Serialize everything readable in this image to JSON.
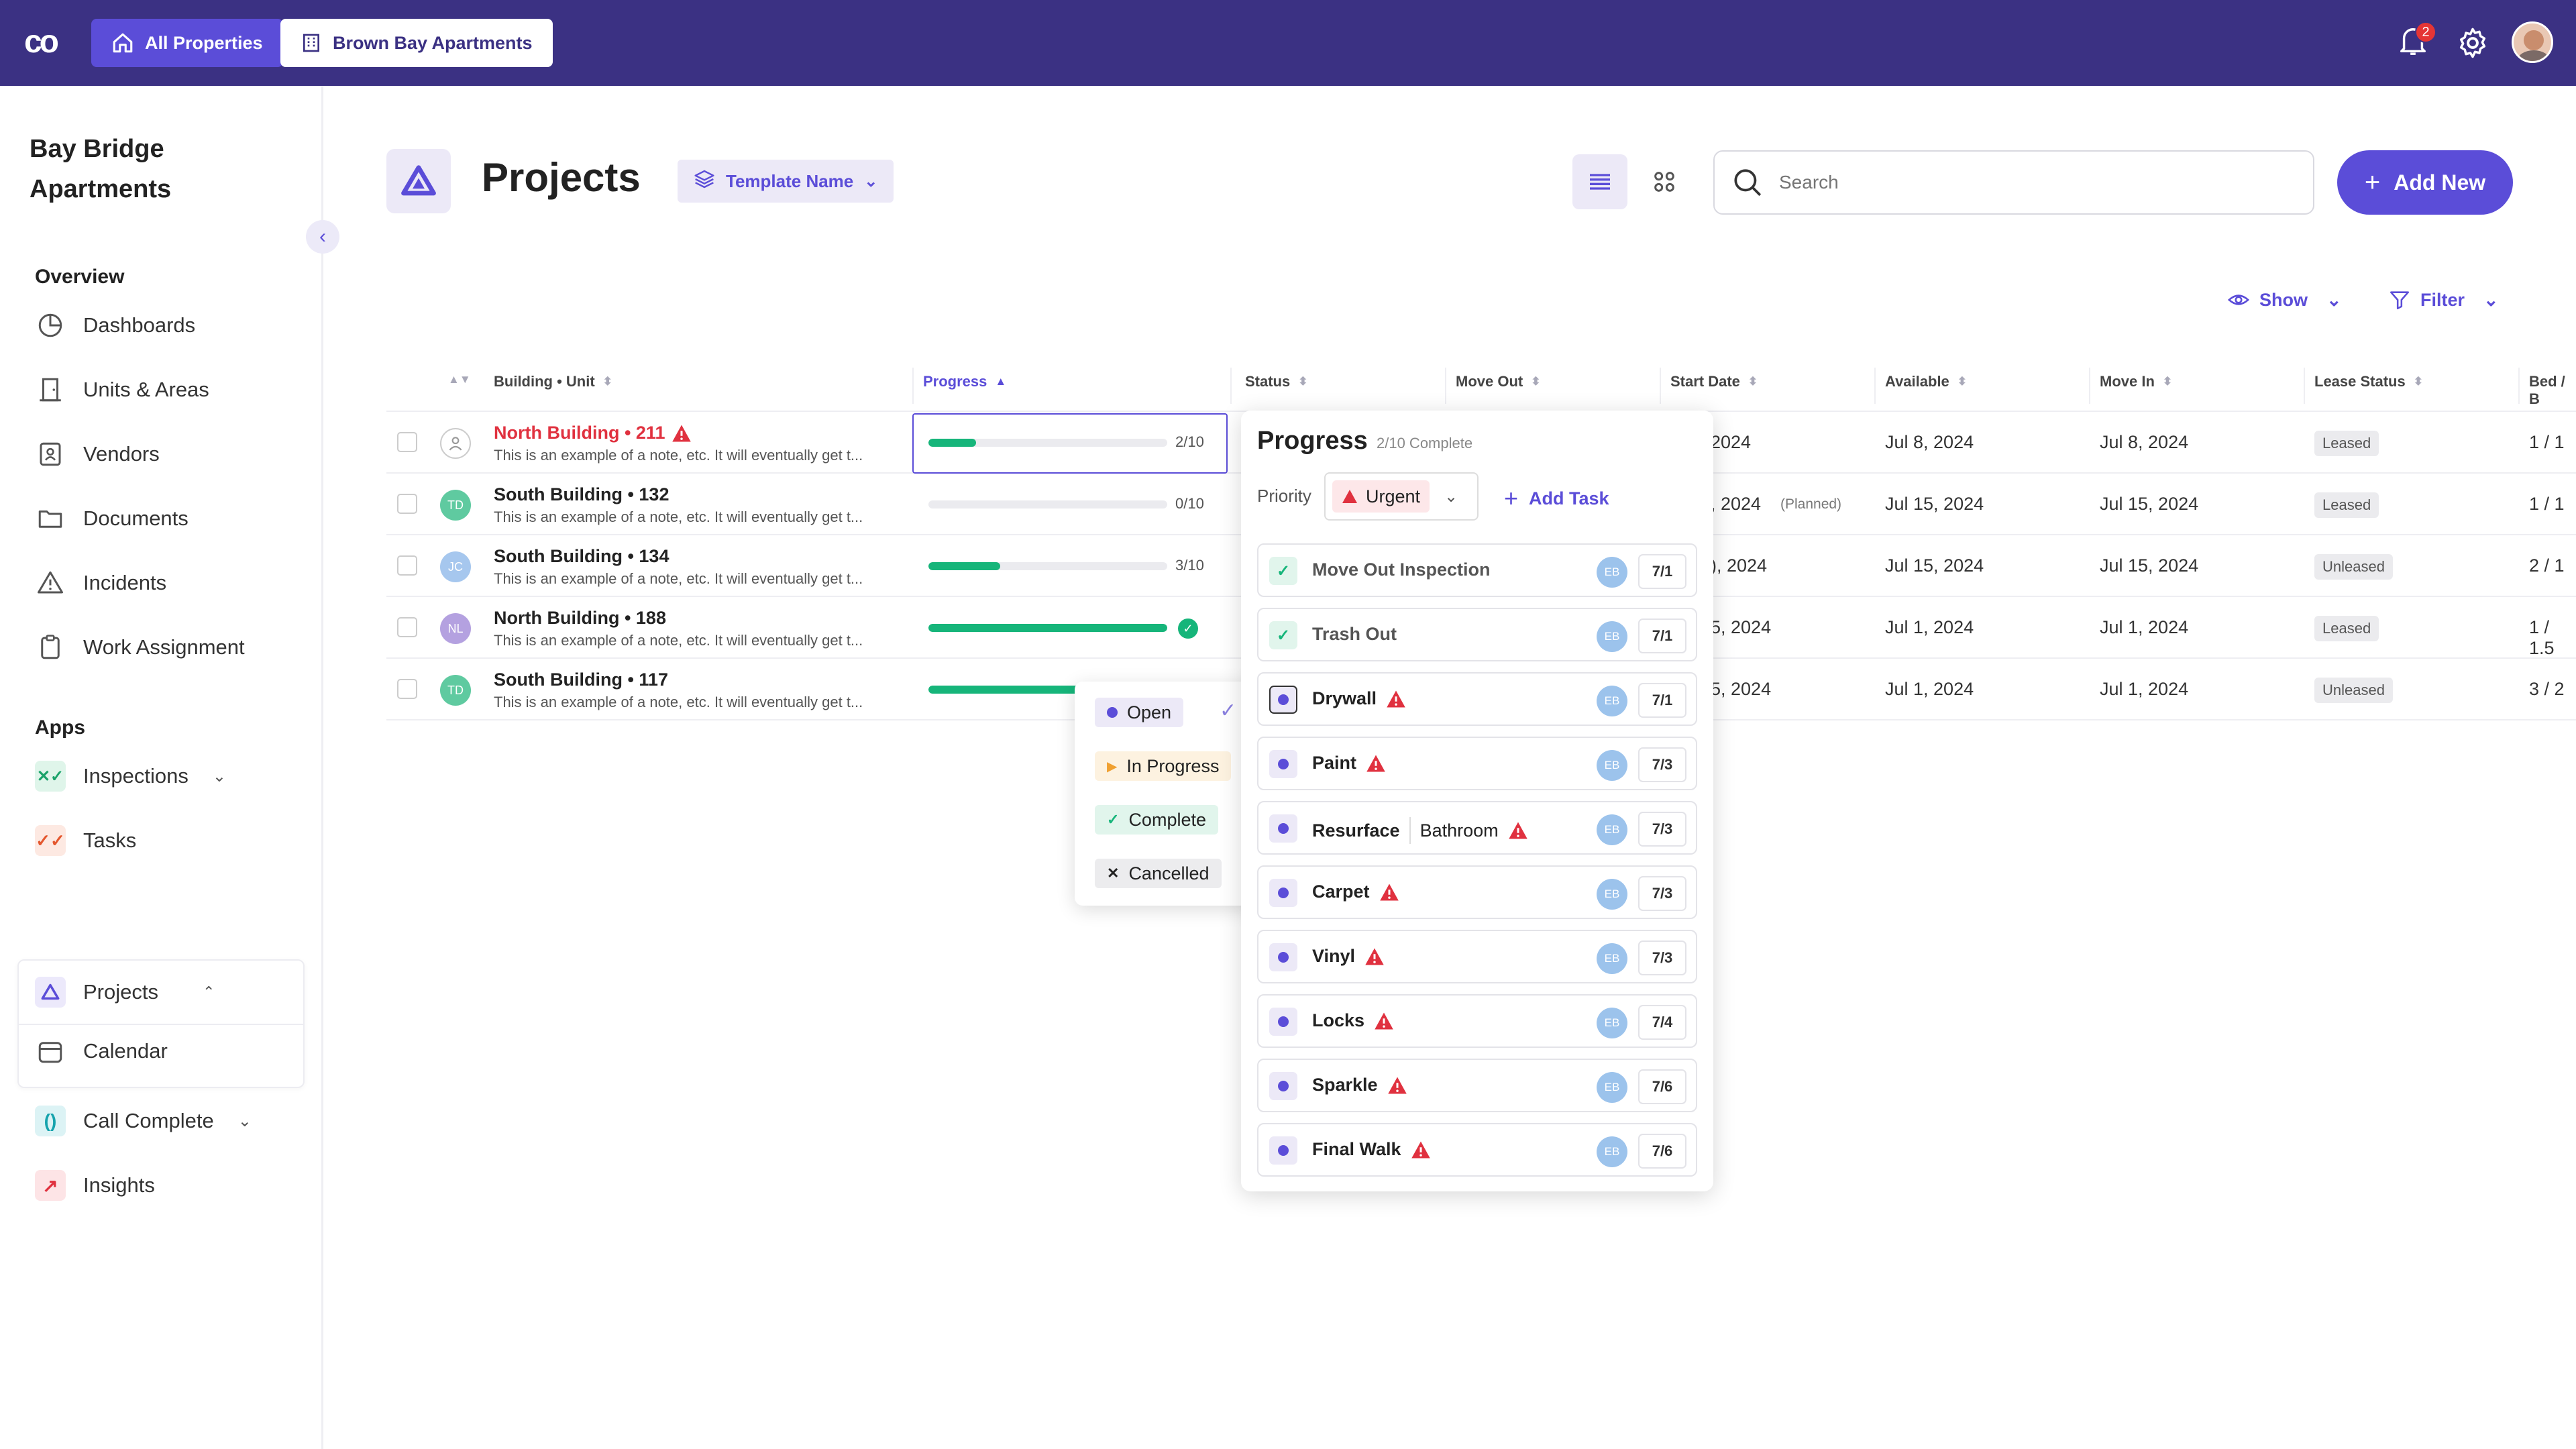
{
  "topbar": {
    "logo": "co",
    "all_properties": "All Properties",
    "property": "Brown Bay Apartments",
    "notification_count": "2",
    "colors": {
      "bar": "#3b3183",
      "accent": "#5b4dd8"
    }
  },
  "sidebar": {
    "property_line1": "Bay Bridge",
    "property_line2": "Apartments",
    "overview_heading": "Overview",
    "overview_items": [
      "Dashboards",
      "Units & Areas",
      "Vendors",
      "Documents",
      "Incidents",
      "Work Assignment"
    ],
    "apps_heading": "Apps",
    "apps_items": [
      "Inspections",
      "Tasks",
      "Projects",
      "Calendar",
      "Call Complete",
      "Insights"
    ]
  },
  "header": {
    "title": "Projects",
    "template": "Template Name",
    "search_placeholder": "Search",
    "add_new": "Add New",
    "show": "Show",
    "filter": "Filter"
  },
  "table": {
    "columns": [
      "Building • Unit",
      "Progress",
      "Status",
      "Move Out",
      "Start Date",
      "Available",
      "Move In",
      "Lease Status",
      "Bed / B"
    ],
    "rows": [
      {
        "building": "North Building • 211",
        "note": "This is an example of a note, etc. It will eventually get t...",
        "avatar": "",
        "progress": 0.2,
        "count": "2/10",
        "start": "2024",
        "planned": "",
        "available": "Jul 8, 2024",
        "move_in": "Jul 8, 2024",
        "lease": "Leased",
        "bed": "1 / 1"
      },
      {
        "building": "South Building • 132",
        "note": "This is an example of a note, etc. It will eventually get t...",
        "avatar": "TD",
        "progress": 0,
        "count": "0/10",
        "start": ", 2024",
        "planned": "(Planned)",
        "available": "Jul 15, 2024",
        "move_in": "Jul 15, 2024",
        "lease": "Leased",
        "bed": "1 / 1"
      },
      {
        "building": "South Building • 134",
        "note": "This is an example of a note, etc. It will eventually get t...",
        "avatar": "JC",
        "progress": 0.3,
        "count": "3/10",
        "start": "), 2024",
        "planned": "",
        "available": "Jul 15, 2024",
        "move_in": "Jul 15, 2024",
        "lease": "Unleased",
        "bed": "2 / 1"
      },
      {
        "building": "North Building • 188",
        "note": "This is an example of a note, etc. It will eventually get t...",
        "avatar": "NL",
        "progress": 1,
        "count": "",
        "start": "5, 2024",
        "planned": "",
        "available": "Jul 1, 2024",
        "move_in": "Jul 1, 2024",
        "lease": "Leased",
        "bed": "1 / 1.5"
      },
      {
        "building": "South Building • 117",
        "note": "This is an example of a note, etc. It will eventually get t...",
        "avatar": "TD",
        "progress": 1,
        "count": "",
        "start": "5, 2024",
        "planned": "",
        "available": "Jul 1, 2024",
        "move_in": "Jul 1, 2024",
        "lease": "Unleased",
        "bed": "3 / 2"
      }
    ]
  },
  "status_menu": {
    "options": [
      "Open",
      "In Progress",
      "Complete",
      "Cancelled"
    ],
    "selected": "Open"
  },
  "progress_popover": {
    "title": "Progress",
    "subtitle": "2/10 Complete",
    "priority_label": "Priority",
    "priority_value": "Urgent",
    "add_task": "Add Task",
    "tasks": [
      {
        "name": "Move Out Inspection",
        "extra": "",
        "done": true,
        "urgent": false,
        "assignee": "EB",
        "date": "7/1"
      },
      {
        "name": "Trash Out",
        "extra": "",
        "done": true,
        "urgent": false,
        "assignee": "EB",
        "date": "7/1"
      },
      {
        "name": "Drywall",
        "extra": "",
        "done": false,
        "urgent": true,
        "assignee": "EB",
        "date": "7/1"
      },
      {
        "name": "Paint",
        "extra": "",
        "done": false,
        "urgent": true,
        "assignee": "EB",
        "date": "7/3"
      },
      {
        "name": "Resurface",
        "extra": "Bathroom",
        "done": false,
        "urgent": true,
        "assignee": "EB",
        "date": "7/3"
      },
      {
        "name": "Carpet",
        "extra": "",
        "done": false,
        "urgent": true,
        "assignee": "EB",
        "date": "7/3"
      },
      {
        "name": "Vinyl",
        "extra": "",
        "done": false,
        "urgent": true,
        "assignee": "EB",
        "date": "7/3"
      },
      {
        "name": "Locks",
        "extra": "",
        "done": false,
        "urgent": true,
        "assignee": "EB",
        "date": "7/4"
      },
      {
        "name": "Sparkle",
        "extra": "",
        "done": false,
        "urgent": true,
        "assignee": "EB",
        "date": "7/6"
      },
      {
        "name": "Final Walk",
        "extra": "",
        "done": false,
        "urgent": true,
        "assignee": "EB",
        "date": "7/6"
      }
    ]
  }
}
